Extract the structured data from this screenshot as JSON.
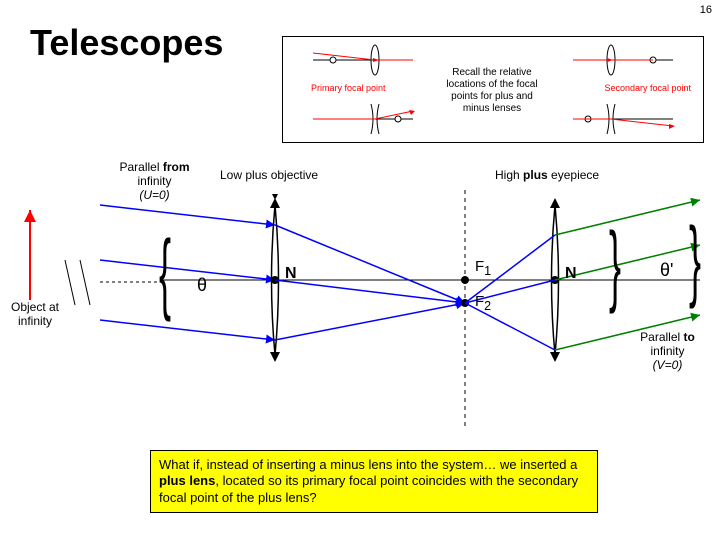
{
  "page_number": "16",
  "title": "Telescopes",
  "infobox": {
    "primary": "Primary focal point",
    "center": "Recall the relative locations of the focal points for plus and minus lenses",
    "secondary": "Secondary focal point"
  },
  "labels": {
    "parallel_from": "Parallel",
    "parallel_from_b": "from",
    "parallel_from_i": "infinity",
    "parallel_from_u": "(U=0)",
    "object": "Object at infinity",
    "low_plus": "Low plus objective",
    "high_plus": "High",
    "high_plus_b": "plus",
    "high_plus_c": "eyepiece",
    "f1": "F",
    "f1s": "1",
    "f2": "F",
    "f2s": "2",
    "n1": "N",
    "n2": "N",
    "theta": "θ",
    "theta_p": "θ'",
    "parallel_to": "Parallel",
    "parallel_to_b": "to",
    "parallel_to_i": "infinity",
    "parallel_to_v": "(V=0)"
  },
  "question": "What if, instead of inserting a minus lens into the system… we inserted a <b>plus lens</b>, located so its primary focal point coincides with the secondary focal point of the plus lens?",
  "colors": {
    "red": "#ff0000",
    "blue": "#0000ff",
    "green": "#008000",
    "black": "#000000",
    "yellow": "#ffff00"
  }
}
